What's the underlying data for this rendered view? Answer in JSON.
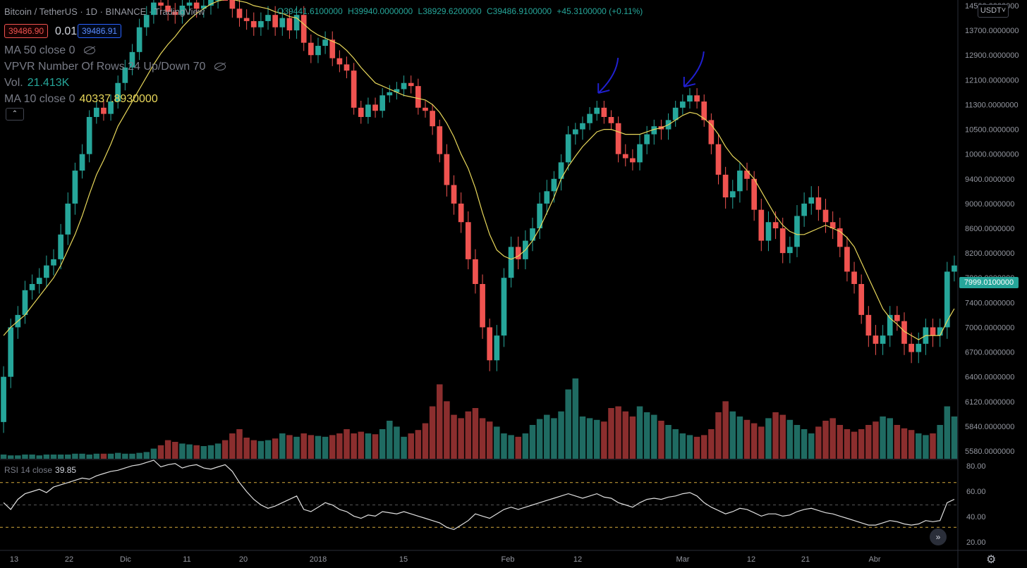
{
  "header": {
    "title": "Bitcoin / TetherUS · 1D · BINANCE · TradingView",
    "ohlc": {
      "o": "O39441.6100000",
      "h": "H39940.0000000",
      "l": "L38929.6200000",
      "c": "C39486.9100000",
      "change": "+45.3100000 (+0.11%)"
    }
  },
  "trade": {
    "sell": "39486.90",
    "spread": "0.01",
    "buy": "39486.91"
  },
  "indicators": {
    "ma50": "MA 50 close 0",
    "vpvr": "VPVR Number Of Rows 24 Up/Down 70",
    "vol_label": "Vol.",
    "vol_value": "21.413K",
    "ma10": "MA 10 close 0",
    "ma10_value": "40337.8930000"
  },
  "collapse_glyph": "⌃",
  "currency_button": "USDT˅",
  "last_price": "7999.0100000",
  "rsi": {
    "label": "RSI 14 close",
    "value": "39.85"
  },
  "scroll_glyph": "»",
  "settings_glyph": "⚙",
  "colors": {
    "up": "#26a69a",
    "down": "#ef5350",
    "ma": "#e8d75a",
    "vol_up": "#1f6b62",
    "vol_down": "#8b2e2e",
    "annotation": "#2020d0"
  },
  "chart_data": {
    "type": "candlestick",
    "price_axis_ticks": [
      14500,
      13700,
      12900,
      12100,
      11300,
      10500,
      10000,
      9400,
      9000,
      8600,
      8200,
      7800,
      7400,
      7000,
      6700,
      6400,
      6120,
      5840,
      5580
    ],
    "price_axis_labels": [
      "14500.0000000",
      "13700.0000000",
      "12900.0000000",
      "12100.0000000",
      "11300.0000000",
      "10500.0000000",
      "10000.0000000",
      "9400.0000000",
      "9000.0000000",
      "8600.0000000",
      "8200.0000000",
      "7800.0000000",
      "7400.0000000",
      "7000.0000000",
      "6700.0000000",
      "6400.0000000",
      "6120.0000000",
      "5840.0000000",
      "5580.0000000"
    ],
    "rsi_axis_labels": [
      "80.00",
      "60.00",
      "40.00",
      "20.00"
    ],
    "time_axis_labels": [
      "13",
      "22",
      "Dic",
      "11",
      "20",
      "2018",
      "15",
      "Feb",
      "12",
      "Mar",
      "12",
      "21",
      "Abr"
    ],
    "candle_closes": [
      6400,
      7000,
      7200,
      7600,
      7700,
      7800,
      8000,
      8100,
      8500,
      9000,
      9600,
      10000,
      10900,
      11200,
      11000,
      11400,
      12000,
      12500,
      13000,
      13800,
      14200,
      14600,
      14500,
      14300,
      14200,
      14500,
      14600,
      14400,
      14500,
      14700,
      15100,
      15000,
      14400,
      14100,
      14000,
      13800,
      14000,
      14200,
      13800,
      14100,
      13700,
      14200,
      13300,
      12900,
      13200,
      13400,
      12800,
      12600,
      12400,
      11200,
      10900,
      11300,
      11100,
      11600,
      11700,
      11800,
      12000,
      11900,
      11200,
      11100,
      10600,
      10000,
      9300,
      9000,
      8700,
      8100,
      7700,
      7000,
      6600,
      6900,
      7800,
      8300,
      8100,
      8400,
      8600,
      9000,
      9200,
      9400,
      9800,
      10400,
      10500,
      10700,
      11000,
      11200,
      10900,
      10700,
      10000,
      9900,
      9800,
      10200,
      10400,
      10600,
      10500,
      10800,
      11200,
      11400,
      11600,
      11400,
      10800,
      10200,
      9500,
      9100,
      9200,
      9600,
      9400,
      8900,
      8400,
      8700,
      8600,
      8200,
      8300,
      8800,
      9000,
      9100,
      8900,
      8700,
      8600,
      8300,
      7900,
      7700,
      7200,
      6900,
      6800,
      6900,
      7200,
      7100,
      6800,
      6700,
      6800,
      7000,
      6900,
      7000,
      7900,
      7999
    ],
    "ma10_values": [
      6900,
      7000,
      7100,
      7200,
      7350,
      7500,
      7650,
      7800,
      8000,
      8250,
      8500,
      8800,
      9150,
      9500,
      9850,
      10200,
      10600,
      11000,
      11400,
      11800,
      12200,
      12600,
      12950,
      13250,
      13500,
      13800,
      14050,
      14250,
      14400,
      14550,
      14650,
      14700,
      14700,
      14650,
      14600,
      14500,
      14450,
      14400,
      14300,
      14250,
      14150,
      14100,
      13900,
      13700,
      13550,
      13450,
      13350,
      13250,
      13050,
      12800,
      12500,
      12250,
      12000,
      11900,
      11800,
      11700,
      11600,
      11550,
      11500,
      11450,
      11300,
      11050,
      10700,
      10350,
      10000,
      9650,
      9250,
      8850,
      8500,
      8250,
      8150,
      8100,
      8150,
      8250,
      8400,
      8600,
      8850,
      9100,
      9400,
      9700,
      9950,
      10150,
      10300,
      10450,
      10500,
      10500,
      10450,
      10400,
      10400,
      10400,
      10450,
      10500,
      10550,
      10650,
      10800,
      10950,
      11050,
      11000,
      10850,
      10650,
      10400,
      10150,
      9950,
      9800,
      9600,
      9400,
      9200,
      9000,
      8800,
      8650,
      8550,
      8500,
      8500,
      8550,
      8600,
      8650,
      8600,
      8550,
      8450,
      8300,
      8050,
      7800,
      7550,
      7300,
      7150,
      7050,
      6950,
      6900,
      6850,
      6900,
      6900,
      6900,
      7100,
      7300
    ],
    "volume_relative": [
      0.05,
      0.04,
      0.04,
      0.05,
      0.05,
      0.04,
      0.05,
      0.05,
      0.05,
      0.05,
      0.06,
      0.06,
      0.05,
      0.06,
      0.06,
      0.06,
      0.07,
      0.06,
      0.06,
      0.07,
      0.08,
      0.12,
      0.16,
      0.22,
      0.2,
      0.18,
      0.17,
      0.16,
      0.15,
      0.16,
      0.18,
      0.22,
      0.3,
      0.35,
      0.25,
      0.22,
      0.21,
      0.22,
      0.24,
      0.3,
      0.28,
      0.26,
      0.3,
      0.28,
      0.27,
      0.26,
      0.28,
      0.3,
      0.35,
      0.3,
      0.32,
      0.3,
      0.29,
      0.35,
      0.45,
      0.38,
      0.26,
      0.3,
      0.34,
      0.42,
      0.62,
      0.88,
      0.68,
      0.52,
      0.48,
      0.56,
      0.6,
      0.48,
      0.44,
      0.38,
      0.3,
      0.28,
      0.26,
      0.3,
      0.4,
      0.47,
      0.52,
      0.48,
      0.56,
      0.82,
      0.95,
      0.5,
      0.48,
      0.46,
      0.44,
      0.6,
      0.62,
      0.56,
      0.5,
      0.62,
      0.55,
      0.52,
      0.45,
      0.4,
      0.35,
      0.3,
      0.28,
      0.26,
      0.28,
      0.35,
      0.55,
      0.68,
      0.56,
      0.5,
      0.46,
      0.42,
      0.38,
      0.48,
      0.55,
      0.52,
      0.46,
      0.4,
      0.35,
      0.3,
      0.38,
      0.45,
      0.48,
      0.4,
      0.35,
      0.32,
      0.35,
      0.4,
      0.44,
      0.5,
      0.48,
      0.4,
      0.36,
      0.34,
      0.3,
      0.28,
      0.3,
      0.4,
      0.62,
      0.5
    ],
    "rsi_values": [
      52,
      46,
      55,
      60,
      62,
      64,
      61,
      66,
      68,
      70,
      72,
      74,
      73,
      76,
      78,
      80,
      81,
      83,
      85,
      86,
      88,
      90,
      84,
      86,
      87,
      83,
      85,
      86,
      83,
      82,
      84,
      86,
      80,
      70,
      62,
      55,
      50,
      47,
      49,
      52,
      55,
      58,
      46,
      44,
      48,
      52,
      50,
      46,
      44,
      40,
      38,
      41,
      40,
      44,
      43,
      42,
      44,
      42,
      40,
      38,
      36,
      34,
      30,
      28,
      32,
      36,
      42,
      40,
      38,
      42,
      46,
      48,
      46,
      48,
      50,
      52,
      54,
      56,
      58,
      60,
      58,
      56,
      58,
      60,
      57,
      56,
      52,
      50,
      48,
      52,
      55,
      56,
      55,
      57,
      58,
      60,
      61,
      58,
      52,
      48,
      45,
      42,
      44,
      47,
      46,
      43,
      40,
      42,
      42,
      40,
      41,
      44,
      46,
      47,
      45,
      43,
      42,
      40,
      38,
      36,
      34,
      32,
      32,
      34,
      36,
      35,
      33,
      32,
      33,
      36,
      35,
      36,
      52,
      55
    ],
    "rsi_levels": [
      70,
      50,
      30
    ],
    "annotations": [
      {
        "type": "arrow",
        "candle": 83
      },
      {
        "type": "arrow",
        "candle": 95
      }
    ]
  }
}
